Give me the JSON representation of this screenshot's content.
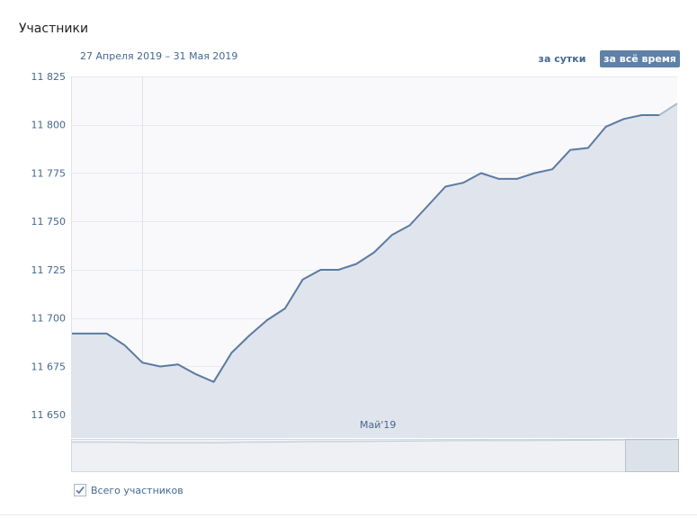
{
  "title": "Участники",
  "date_range": "27 Апреля 2019 – 31 Мая 2019",
  "buttons": {
    "day": "за сутки",
    "all_time": "за всё время"
  },
  "legend": {
    "label": "Всего участников",
    "checked": true
  },
  "colors": {
    "line": "#5b7aa3",
    "fill": "#dee3eb",
    "accent": "#5e81a8",
    "link": "#45688e"
  },
  "chart_data": {
    "type": "area",
    "title": "",
    "xlabel": "",
    "ylabel": "",
    "x": [
      "2019-04-27",
      "2019-04-28",
      "2019-04-29",
      "2019-04-30",
      "2019-05-01",
      "2019-05-02",
      "2019-05-03",
      "2019-05-04",
      "2019-05-05",
      "2019-05-06",
      "2019-05-07",
      "2019-05-08",
      "2019-05-09",
      "2019-05-10",
      "2019-05-11",
      "2019-05-12",
      "2019-05-13",
      "2019-05-14",
      "2019-05-15",
      "2019-05-16",
      "2019-05-17",
      "2019-05-18",
      "2019-05-19",
      "2019-05-20",
      "2019-05-21",
      "2019-05-22",
      "2019-05-23",
      "2019-05-24",
      "2019-05-25",
      "2019-05-26",
      "2019-05-27",
      "2019-05-28",
      "2019-05-29",
      "2019-05-30",
      "2019-05-31"
    ],
    "series": [
      {
        "values": [
          11692,
          11692,
          11692,
          11686,
          11677,
          11675,
          11676,
          11671,
          11667,
          11682,
          11691,
          11699,
          11705,
          11720,
          11725,
          11725,
          11728,
          11734,
          11743,
          11748,
          11758,
          11768,
          11770,
          11775,
          11772,
          11772,
          11775,
          11777,
          11787,
          11788,
          11799,
          11803,
          11805,
          11805,
          11811
        ]
      }
    ],
    "ylim": [
      11638,
      11825
    ],
    "y_ticks": [
      "11 825",
      "11 800",
      "11 775",
      "11 750",
      "11 725",
      "11 700",
      "11 675",
      "11 650"
    ],
    "y_tick_values": [
      11825,
      11800,
      11775,
      11750,
      11725,
      11700,
      11675,
      11650
    ],
    "x_tick_label": "Май'19",
    "x_tick_date": "2019-05-01",
    "grid": true
  }
}
